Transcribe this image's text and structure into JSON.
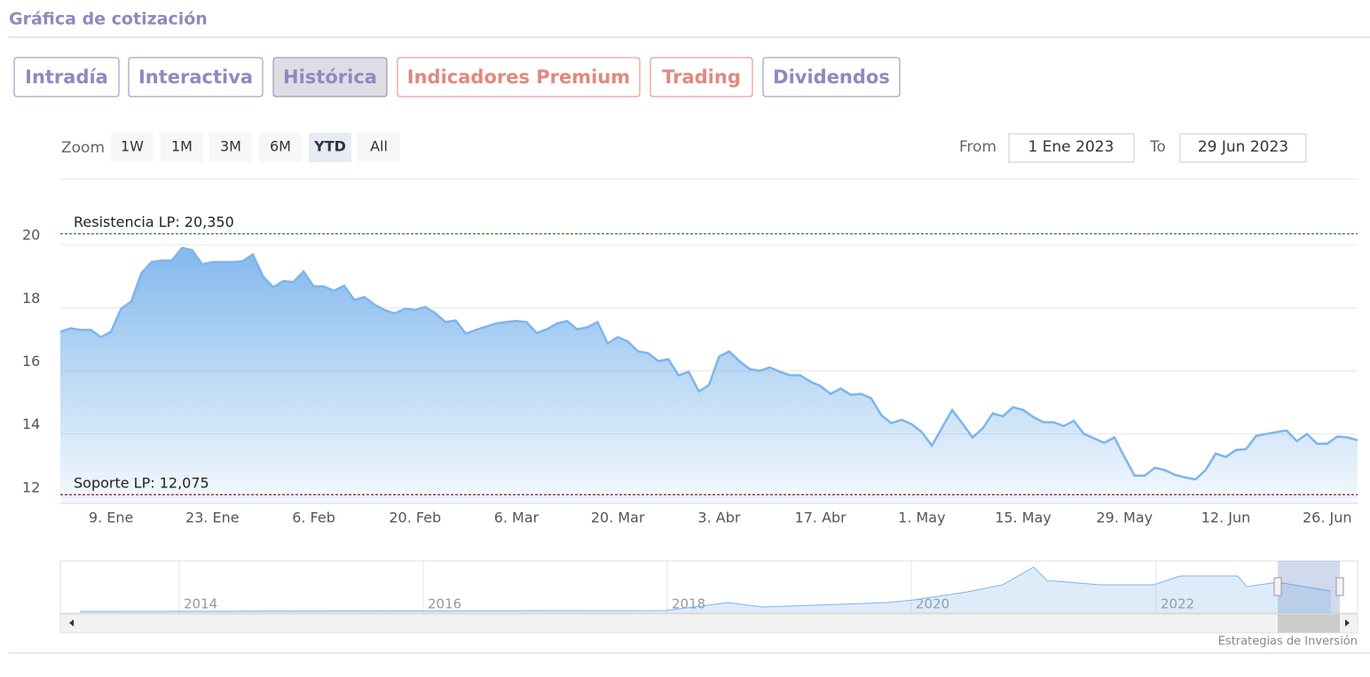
{
  "header": {
    "title": "Gráfica de cotización"
  },
  "tabs": [
    "Intradía",
    "Interactiva",
    "Histórica",
    "Indicadores Premium",
    "Trading",
    "Dividendos"
  ],
  "zoom": {
    "label": "Zoom",
    "buttons": [
      "1W",
      "1M",
      "3M",
      "6M",
      "YTD",
      "All"
    ]
  },
  "range": {
    "from_label": "From",
    "from": "1 Ene 2023",
    "to_label": "To",
    "to": "29 Jun 2023"
  },
  "chart_data": {
    "type": "area",
    "color": "#7cb5ec",
    "categories": [
      null,
      null,
      null,
      null,
      null,
      "9. Ene",
      null,
      null,
      null,
      null,
      null,
      null,
      null,
      null,
      null,
      "23. Ene",
      null,
      null,
      null,
      null,
      null,
      null,
      null,
      null,
      null,
      "6. Feb",
      null,
      null,
      null,
      null,
      null,
      null,
      null,
      null,
      null,
      "20. Feb",
      null,
      null,
      null,
      null,
      null,
      null,
      null,
      null,
      null,
      "6. Mar",
      null,
      null,
      null,
      null,
      null,
      null,
      null,
      null,
      null,
      "20. Mar",
      null,
      null,
      null,
      null,
      null,
      null,
      null,
      null,
      null,
      "3. Abr",
      null,
      null,
      null,
      null,
      null,
      null,
      null,
      null,
      null,
      "17. Abr",
      null,
      null,
      null,
      null,
      null,
      null,
      null,
      null,
      null,
      "1. May",
      null,
      null,
      null,
      null,
      null,
      null,
      null,
      null,
      null,
      "15. May",
      null,
      null,
      null,
      null,
      null,
      null,
      null,
      null,
      null,
      "29. May",
      null,
      null,
      null,
      null,
      null,
      null,
      null,
      null,
      null,
      "12. Jun",
      null,
      null,
      null,
      null,
      null,
      null,
      null,
      null,
      null,
      "26. Jun",
      null,
      null,
      null
    ],
    "values": [
      17.24,
      17.35,
      17.3,
      17.3,
      17.07,
      17.24,
      17.97,
      18.2,
      19.1,
      19.45,
      19.5,
      19.5,
      19.9,
      19.83,
      19.38,
      19.45,
      19.45,
      19.45,
      19.48,
      19.69,
      19.0,
      18.65,
      18.85,
      18.82,
      19.15,
      18.68,
      18.68,
      18.54,
      18.7,
      18.25,
      18.34,
      18.1,
      17.93,
      17.82,
      17.97,
      17.93,
      18.03,
      17.83,
      17.55,
      17.6,
      17.18,
      17.3,
      17.4,
      17.5,
      17.55,
      17.58,
      17.55,
      17.2,
      17.32,
      17.5,
      17.58,
      17.32,
      17.38,
      17.55,
      16.87,
      17.07,
      16.93,
      16.62,
      16.56,
      16.31,
      16.37,
      15.86,
      15.97,
      15.35,
      15.55,
      16.45,
      16.62,
      16.31,
      16.06,
      16.0,
      16.11,
      15.97,
      15.86,
      15.86,
      15.66,
      15.52,
      15.27,
      15.44,
      15.24,
      15.27,
      15.13,
      14.6,
      14.34,
      14.45,
      14.31,
      14.06,
      13.63,
      14.2,
      14.76,
      14.34,
      13.89,
      14.17,
      14.65,
      14.56,
      14.85,
      14.76,
      14.54,
      14.37,
      14.37,
      14.25,
      14.42,
      14.0,
      13.86,
      13.72,
      13.89,
      13.27,
      12.68,
      12.68,
      12.93,
      12.85,
      12.7,
      12.62,
      12.56,
      12.85,
      13.38,
      13.27,
      13.49,
      13.52,
      13.94,
      14.0,
      14.06,
      14.11,
      13.77,
      14.0,
      13.69,
      13.69,
      13.92,
      13.89,
      13.8
    ],
    "ylim": [
      11.8,
      22
    ],
    "yticks": [
      12,
      14,
      16,
      18,
      20
    ],
    "grid": true,
    "lines": [
      {
        "label": "Resistencia LP: 20,350",
        "value": 20.35,
        "color": "#2e7d32"
      },
      {
        "label": "Soporte LP: 12,075",
        "value": 12.075,
        "color": "#8b1a2b"
      }
    ]
  },
  "navigator": {
    "labels": [
      "2014",
      "2016",
      "2018",
      "2020",
      "2022"
    ]
  },
  "credit": "Estrategias de Inversión"
}
